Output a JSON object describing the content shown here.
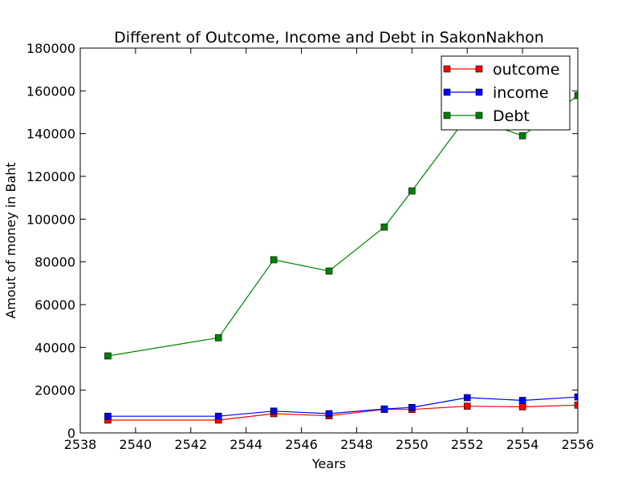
{
  "chart_data": {
    "type": "line",
    "title": "Different of Outcome, Income and Debt in SakonNakhon",
    "xlabel": "Years",
    "ylabel": "Amout of money in Baht",
    "xlim": [
      2538,
      2556
    ],
    "ylim": [
      0,
      180000
    ],
    "xticks": [
      2538,
      2540,
      2542,
      2544,
      2546,
      2548,
      2550,
      2552,
      2554,
      2556
    ],
    "yticks": [
      0,
      20000,
      40000,
      60000,
      80000,
      100000,
      120000,
      140000,
      160000,
      180000
    ],
    "x": [
      2539,
      2543,
      2545,
      2547,
      2549,
      2550,
      2552,
      2554,
      2556
    ],
    "series": [
      {
        "name": "outcome",
        "color": "#ff0000",
        "marker": "square",
        "values": [
          6000,
          6000,
          9000,
          8000,
          11000,
          11000,
          12500,
          12200,
          13000
        ]
      },
      {
        "name": "income",
        "color": "#0000ff",
        "marker": "square",
        "values": [
          7800,
          7800,
          10200,
          9000,
          11200,
          11900,
          16500,
          15200,
          16800
        ]
      },
      {
        "name": "Debt",
        "color": "#008000",
        "marker": "square",
        "values": [
          36000,
          44500,
          81000,
          75700,
          96300,
          113200,
          148000,
          139000,
          157800
        ]
      }
    ],
    "legend": {
      "position": "top-right",
      "entries": [
        "outcome",
        "income",
        "Debt"
      ]
    },
    "grid": false
  }
}
